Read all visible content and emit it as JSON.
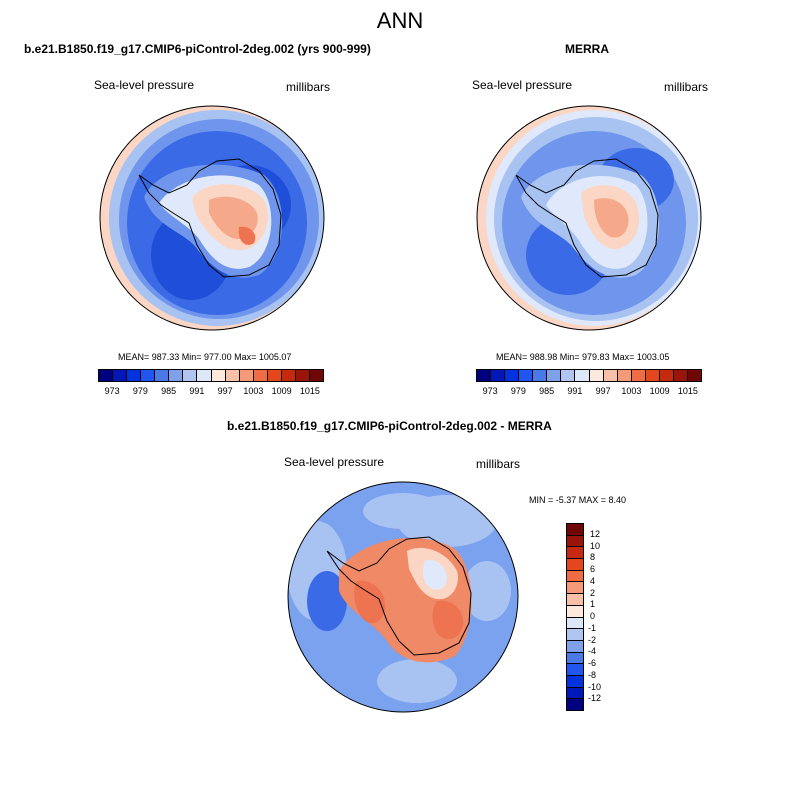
{
  "title": "ANN",
  "panels": {
    "model": {
      "title": "b.e21.B1850.f19_g17.CMIP6-piControl-2deg.002 (yrs 900-999)",
      "variable": "Sea-level pressure",
      "units": "millibars",
      "stats": "MEAN= 987.33  Min= 977.00  Max= 1005.07"
    },
    "obs": {
      "title": "MERRA",
      "variable": "Sea-level pressure",
      "units": "millibars",
      "stats": "MEAN= 988.98  Min= 979.83  Max= 1003.05"
    },
    "diff": {
      "title": "b.e21.B1850.f19_g17.CMIP6-piControl-2deg.002 - MERRA",
      "variable": "Sea-level pressure",
      "units": "millibars",
      "stats": "MIN =  -5.37 MAX =   8.40"
    }
  },
  "colorbar_abs": {
    "colors": [
      "#00007f",
      "#0018b8",
      "#0033dd",
      "#2055f0",
      "#4a7ae8",
      "#7fa1ea",
      "#b0c6f0",
      "#dce8f8",
      "#fde8dc",
      "#f8c0a6",
      "#f49a78",
      "#ef6c45",
      "#e4461e",
      "#c52a10",
      "#9b140a",
      "#6e0705"
    ],
    "labels": [
      "973",
      "979",
      "985",
      "991",
      "997",
      "1003",
      "1009",
      "1015"
    ]
  },
  "colorbar_diff": {
    "colors": [
      "#00007f",
      "#0018b8",
      "#0033dd",
      "#2055f0",
      "#4a7ae8",
      "#7fa1ea",
      "#b0c6f0",
      "#dce8f8",
      "#fde8dc",
      "#f8c0a6",
      "#f49a78",
      "#ef6c45",
      "#e4461e",
      "#c52a10",
      "#9b140a",
      "#6e0705"
    ],
    "labels": [
      "12",
      "10",
      "8",
      "6",
      "4",
      "2",
      "1",
      "0",
      "-1",
      "-2",
      "-4",
      "-6",
      "-8",
      "-10",
      "-12"
    ]
  },
  "map_colors": {
    "deep_low": "#1f4fd8",
    "low": "#3a6ae6",
    "mid_low": "#6f95ec",
    "light_blue": "#a8c2f2",
    "pale": "#dfe9fb",
    "pale_red": "#fbd6c4",
    "light_red": "#f6a88a",
    "red": "#ee7350",
    "diff_ocean": "#7aa2ee",
    "diff_land": "#f08a66"
  }
}
